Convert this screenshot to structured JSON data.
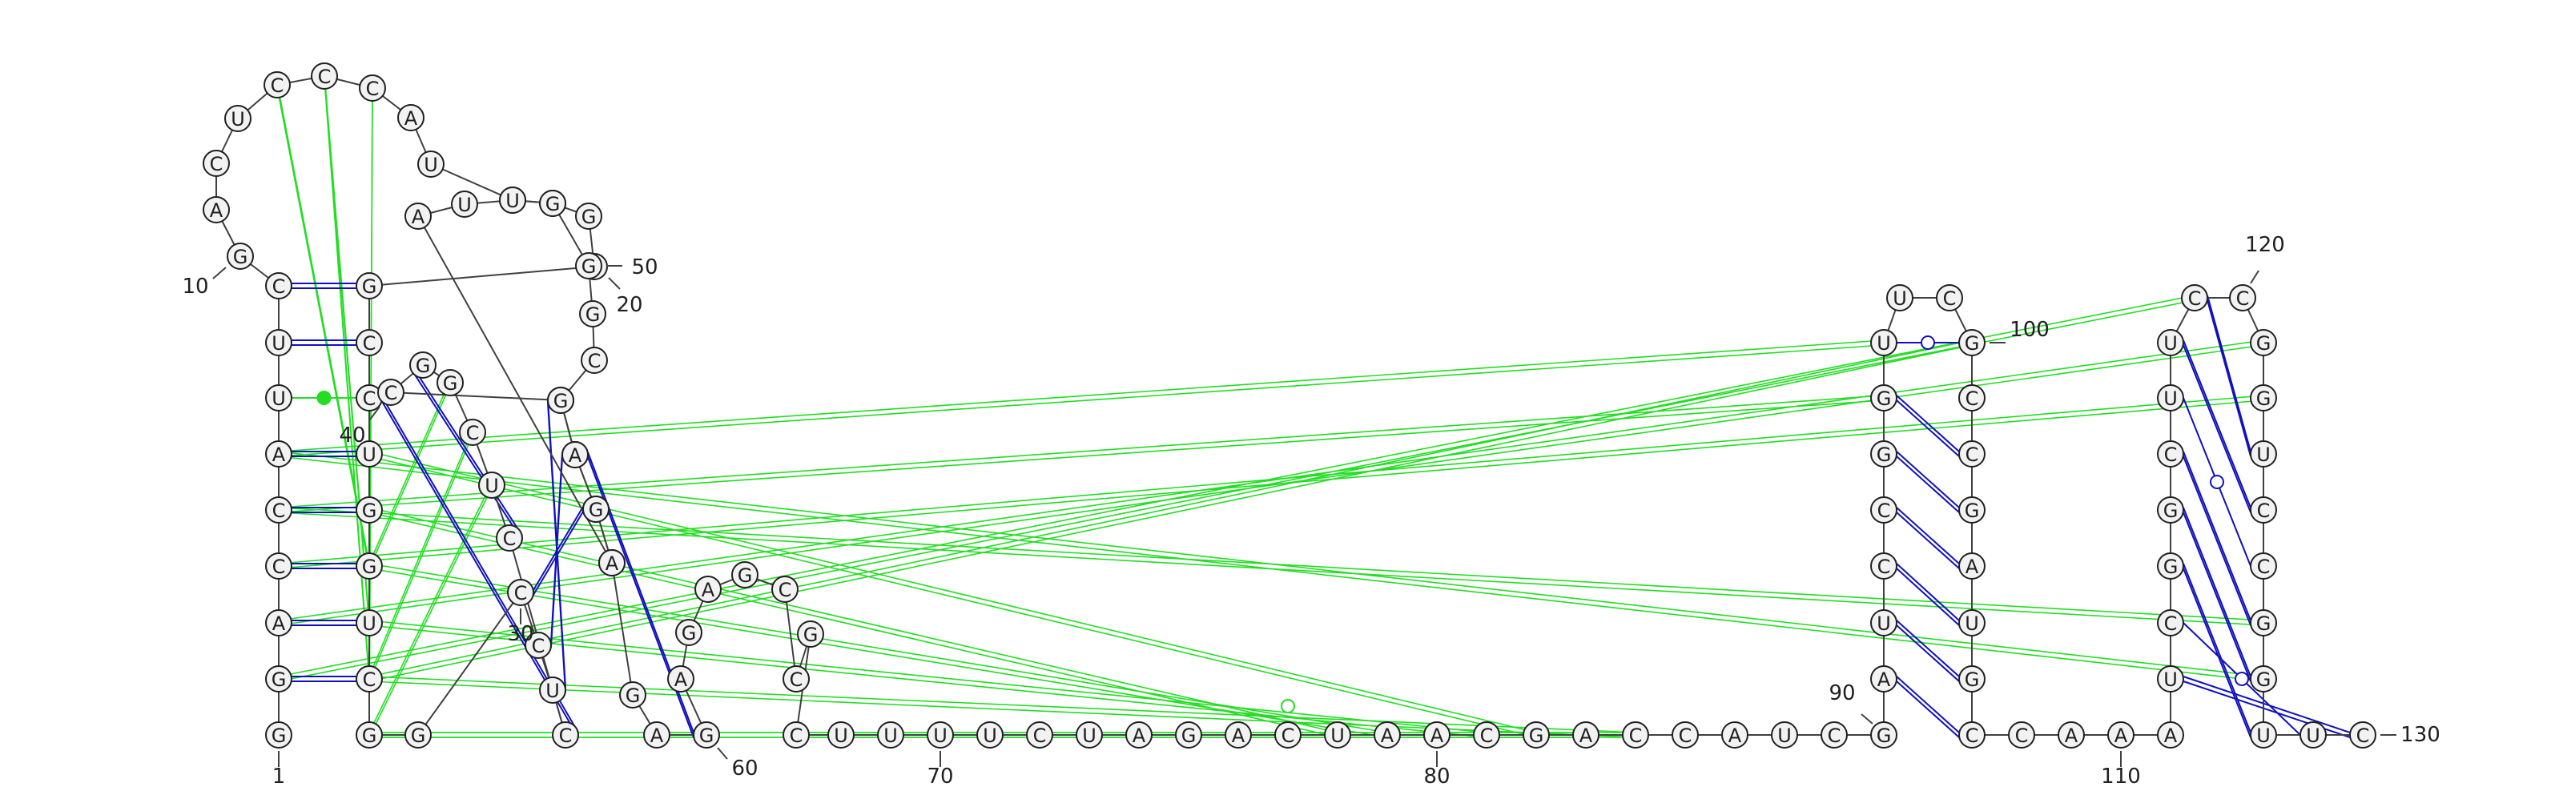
{
  "diagram": {
    "type": "rna-secondary-structure",
    "colors": {
      "backbone": "#404040",
      "canonical_pair": "#1010c0",
      "noncanonical_pair": "#22dd22",
      "nucleotide_fill": "#f2f2f2",
      "nucleotide_stroke": "#202020",
      "text": "#202020"
    },
    "position_labels": [
      "1",
      "10",
      "20",
      "30",
      "40",
      "50",
      "60",
      "70",
      "80",
      "90",
      "100",
      "110",
      "120",
      "130"
    ],
    "nucleotides": [
      {
        "n": 1,
        "b": "G"
      },
      {
        "n": 2,
        "b": "G"
      },
      {
        "n": 3,
        "b": "A"
      },
      {
        "n": 4,
        "b": "C"
      },
      {
        "n": 5,
        "b": "C"
      },
      {
        "n": 6,
        "b": "A"
      },
      {
        "n": 7,
        "b": "U"
      },
      {
        "n": 8,
        "b": "U"
      },
      {
        "n": 9,
        "b": "C"
      },
      {
        "n": 10,
        "b": "G"
      },
      {
        "n": 11,
        "b": "A"
      },
      {
        "n": 12,
        "b": "C"
      },
      {
        "n": 13,
        "b": "U"
      },
      {
        "n": 14,
        "b": "C"
      },
      {
        "n": 15,
        "b": "C"
      },
      {
        "n": 16,
        "b": "C"
      },
      {
        "n": 17,
        "b": "A"
      },
      {
        "n": 18,
        "b": "U"
      },
      {
        "n": 19,
        "b": "U"
      },
      {
        "n": 20,
        "b": "A"
      },
      {
        "n": 21,
        "b": "G"
      },
      {
        "n": 22,
        "b": "G"
      },
      {
        "n": 23,
        "b": "G"
      },
      {
        "n": 24,
        "b": "C"
      },
      {
        "n": 25,
        "b": "C"
      },
      {
        "n": 26,
        "b": "U"
      },
      {
        "n": 27,
        "b": "G"
      },
      {
        "n": 28,
        "b": "G"
      },
      {
        "n": 29,
        "b": "U"
      },
      {
        "n": 30,
        "b": "C"
      },
      {
        "n": 31,
        "b": "G"
      },
      {
        "n": 32,
        "b": "G"
      },
      {
        "n": 33,
        "b": "C"
      },
      {
        "n": 34,
        "b": "C"
      },
      {
        "n": 35,
        "b": "U"
      },
      {
        "n": 36,
        "b": "C"
      },
      {
        "n": 37,
        "b": "C"
      },
      {
        "n": 38,
        "b": "U"
      },
      {
        "n": 39,
        "b": "C"
      },
      {
        "n": 40,
        "b": "G"
      },
      {
        "n": 41,
        "b": "G"
      },
      {
        "n": 42,
        "b": "C"
      },
      {
        "n": 43,
        "b": "G"
      },
      {
        "n": 44,
        "b": "G"
      },
      {
        "n": 45,
        "b": "C"
      },
      {
        "n": 46,
        "b": "G"
      },
      {
        "n": 47,
        "b": "A"
      },
      {
        "n": 48,
        "b": "U"
      },
      {
        "n": 49,
        "b": "U"
      },
      {
        "n": 50,
        "b": "G"
      },
      {
        "n": 51,
        "b": "G"
      },
      {
        "n": 52,
        "b": "G"
      },
      {
        "n": 53,
        "b": "C"
      },
      {
        "n": 54,
        "b": "G"
      },
      {
        "n": 55,
        "b": "A"
      },
      {
        "n": 56,
        "b": "G"
      },
      {
        "n": 57,
        "b": "A"
      },
      {
        "n": 58,
        "b": "G"
      },
      {
        "n": 59,
        "b": "A"
      },
      {
        "n": 60,
        "b": "G"
      },
      {
        "n": 61,
        "b": "A"
      },
      {
        "n": 62,
        "b": "G"
      },
      {
        "n": 63,
        "b": "A"
      },
      {
        "n": 64,
        "b": "G"
      },
      {
        "n": 65,
        "b": "C"
      },
      {
        "n": 66,
        "b": "C"
      },
      {
        "n": 67,
        "b": "G"
      },
      {
        "n": 68,
        "b": "C"
      },
      {
        "n": 69,
        "b": "U"
      },
      {
        "n": 70,
        "b": "U"
      },
      {
        "n": 71,
        "b": "U"
      },
      {
        "n": 72,
        "b": "U"
      },
      {
        "n": 73,
        "b": "C"
      },
      {
        "n": 74,
        "b": "U"
      },
      {
        "n": 75,
        "b": "A"
      },
      {
        "n": 76,
        "b": "G"
      },
      {
        "n": 77,
        "b": "A"
      },
      {
        "n": 78,
        "b": "C"
      },
      {
        "n": 79,
        "b": "U"
      },
      {
        "n": 80,
        "b": "A"
      },
      {
        "n": 81,
        "b": "A"
      },
      {
        "n": 82,
        "b": "C"
      },
      {
        "n": 83,
        "b": "G"
      },
      {
        "n": 84,
        "b": "A"
      },
      {
        "n": 85,
        "b": "C"
      },
      {
        "n": 86,
        "b": "C"
      },
      {
        "n": 87,
        "b": "A"
      },
      {
        "n": 88,
        "b": "U"
      },
      {
        "n": 89,
        "b": "C"
      },
      {
        "n": 90,
        "b": "G"
      },
      {
        "n": 91,
        "b": "A"
      },
      {
        "n": 92,
        "b": "U"
      },
      {
        "n": 93,
        "b": "C"
      },
      {
        "n": 94,
        "b": "C"
      },
      {
        "n": 95,
        "b": "G"
      },
      {
        "n": 96,
        "b": "G"
      },
      {
        "n": 97,
        "b": "U"
      },
      {
        "n": 98,
        "b": "U"
      },
      {
        "n": 99,
        "b": "C"
      },
      {
        "n": 100,
        "b": "G"
      },
      {
        "n": 101,
        "b": "C"
      },
      {
        "n": 102,
        "b": "C"
      },
      {
        "n": 103,
        "b": "G"
      },
      {
        "n": 104,
        "b": "A"
      },
      {
        "n": 105,
        "b": "U"
      },
      {
        "n": 106,
        "b": "G"
      },
      {
        "n": 107,
        "b": "C"
      },
      {
        "n": 108,
        "b": "C"
      },
      {
        "n": 109,
        "b": "A"
      },
      {
        "n": 110,
        "b": "A"
      },
      {
        "n": 111,
        "b": "A"
      },
      {
        "n": 112,
        "b": "U"
      },
      {
        "n": 113,
        "b": "C"
      },
      {
        "n": 114,
        "b": "G"
      },
      {
        "n": 115,
        "b": "G"
      },
      {
        "n": 116,
        "b": "C"
      },
      {
        "n": 117,
        "b": "U"
      },
      {
        "n": 118,
        "b": "U"
      },
      {
        "n": 119,
        "b": "C"
      },
      {
        "n": 120,
        "b": "C"
      },
      {
        "n": 121,
        "b": "G"
      },
      {
        "n": 122,
        "b": "G"
      },
      {
        "n": 123,
        "b": "U"
      },
      {
        "n": 124,
        "b": "C"
      },
      {
        "n": 125,
        "b": "C"
      },
      {
        "n": 126,
        "b": "G"
      },
      {
        "n": 127,
        "b": "G"
      },
      {
        "n": 128,
        "b": "U"
      },
      {
        "n": 129,
        "b": "U"
      },
      {
        "n": 130,
        "b": "C"
      }
    ],
    "pairs": [
      {
        "i": 2,
        "j": 30,
        "kind": "WC"
      },
      {
        "i": 3,
        "j": 29,
        "kind": "WC"
      },
      {
        "i": 4,
        "j": 28,
        "kind": "WC"
      },
      {
        "i": 5,
        "j": 27,
        "kind": "WC"
      },
      {
        "i": 6,
        "j": 26,
        "kind": "WC"
      },
      {
        "i": 7,
        "j": 25,
        "kind": "nc-dot"
      },
      {
        "i": 8,
        "j": 24,
        "kind": "WC"
      },
      {
        "i": 9,
        "j": 23,
        "kind": "WC"
      },
      {
        "i": 33,
        "j": 45,
        "kind": "WC"
      },
      {
        "i": 34,
        "j": 44,
        "kind": "WC"
      },
      {
        "i": 35,
        "j": 43,
        "kind": "WC"
      },
      {
        "i": 36,
        "j": 42,
        "kind": "WC"
      },
      {
        "i": 37,
        "j": 41,
        "kind": "WC"
      },
      {
        "i": 55,
        "j": 60,
        "kind": "WC"
      },
      {
        "i": 91,
        "j": 107,
        "kind": "WC"
      },
      {
        "i": 92,
        "j": 106,
        "kind": "WC"
      },
      {
        "i": 93,
        "j": 105,
        "kind": "WC"
      },
      {
        "i": 94,
        "j": 104,
        "kind": "WC"
      },
      {
        "i": 95,
        "j": 103,
        "kind": "WC"
      },
      {
        "i": 96,
        "j": 102,
        "kind": "WC"
      },
      {
        "i": 97,
        "j": 100,
        "kind": "GU"
      },
      {
        "i": 112,
        "j": 130,
        "kind": "WC"
      },
      {
        "i": 113,
        "j": 129,
        "kind": "GU"
      },
      {
        "i": 114,
        "j": 128,
        "kind": "WC"
      },
      {
        "i": 115,
        "j": 127,
        "kind": "WC"
      },
      {
        "i": 116,
        "j": 126,
        "kind": "WC"
      },
      {
        "i": 117,
        "j": 125,
        "kind": "GU"
      },
      {
        "i": 118,
        "j": 124,
        "kind": "WC"
      },
      {
        "i": 119,
        "j": 123,
        "kind": "WC"
      }
    ]
  }
}
